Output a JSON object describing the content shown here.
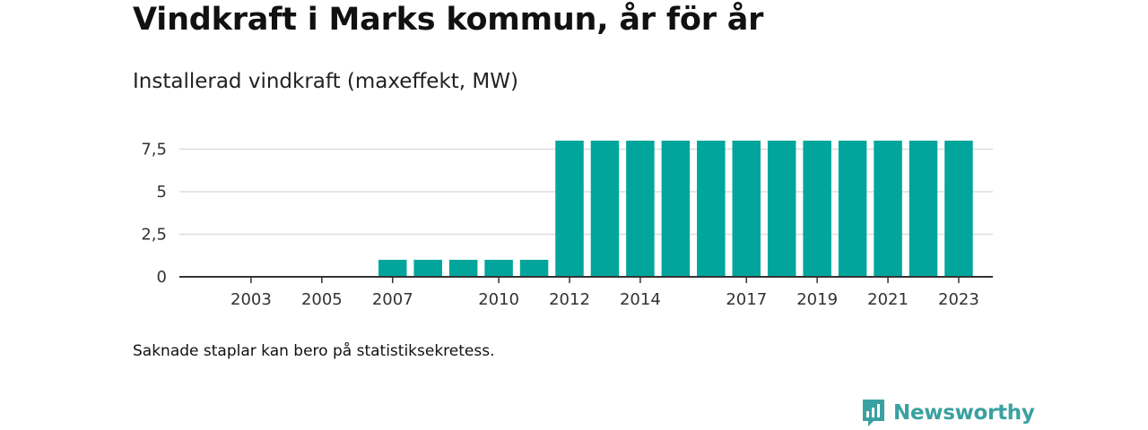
{
  "title": "Vindkraft i Marks kommun, år för år",
  "subtitle": "Installerad vindkraft (maxeffekt, MW)",
  "note": "Saknade staplar kan bero på statistiksekretess.",
  "brand": "Newsworthy",
  "colors": {
    "bar": "#02a59c",
    "grid": "#dddddd",
    "axis": "#333333",
    "brand": "#3aa1a0"
  },
  "chart_data": {
    "type": "bar",
    "title": "Vindkraft i Marks kommun, år för år",
    "subtitle": "Installerad vindkraft (maxeffekt, MW)",
    "categories": [
      2002,
      2003,
      2004,
      2005,
      2006,
      2007,
      2008,
      2009,
      2010,
      2011,
      2012,
      2013,
      2014,
      2015,
      2016,
      2017,
      2018,
      2019,
      2020,
      2021,
      2022,
      2023
    ],
    "values": [
      null,
      null,
      null,
      null,
      null,
      1,
      1,
      1,
      1,
      1,
      8,
      8,
      8,
      8,
      8,
      8,
      8,
      8,
      8,
      8,
      8,
      8
    ],
    "ylim": [
      0,
      8
    ],
    "yticks": [
      0,
      2.5,
      5,
      7.5
    ],
    "ytick_labels": [
      "0",
      "2,5",
      "5",
      "7,5"
    ],
    "xticks": [
      2003,
      2005,
      2007,
      2010,
      2012,
      2014,
      2017,
      2019,
      2021,
      2023
    ],
    "grid": true,
    "legend": "none"
  }
}
